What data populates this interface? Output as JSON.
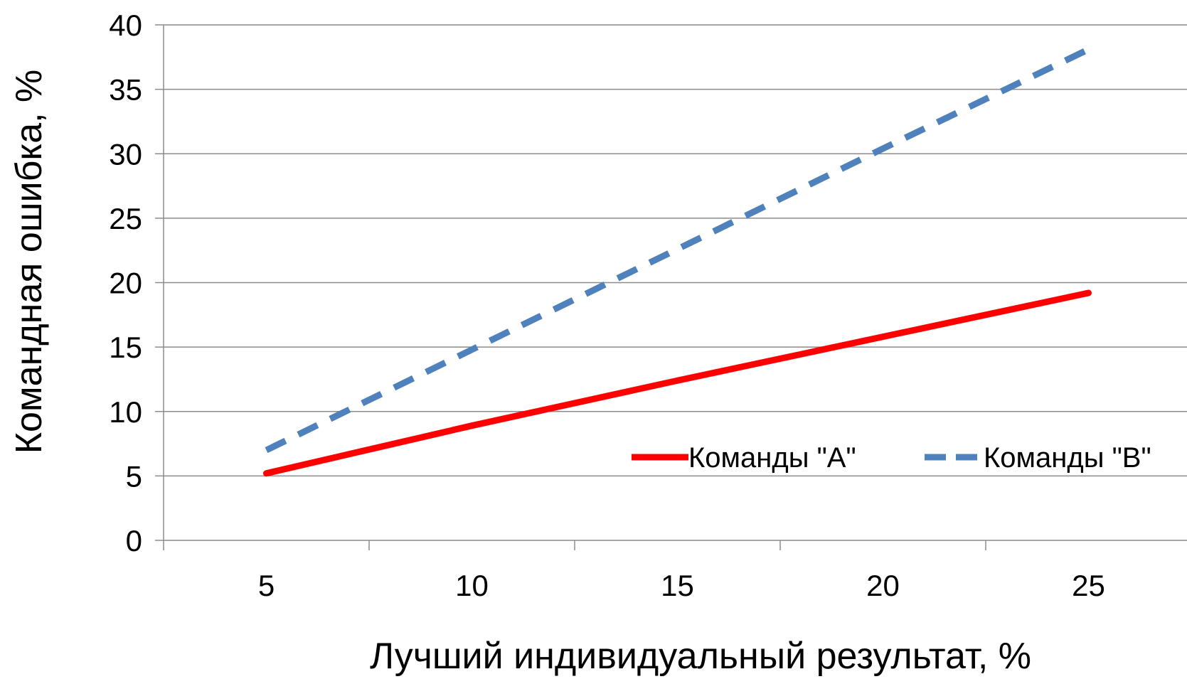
{
  "chart_data": {
    "type": "line",
    "title": "",
    "xlabel": "Лучший индивидуальный результат, %",
    "ylabel": "Командная ошибка, %",
    "x": [
      5,
      10,
      15,
      20,
      25
    ],
    "x_tick_labels": [
      "5",
      "10",
      "15",
      "20",
      "25"
    ],
    "y_tick_labels": [
      "0",
      "5",
      "10",
      "15",
      "20",
      "25",
      "30",
      "35",
      "40"
    ],
    "ylim": [
      0,
      40
    ],
    "grid": "horizontal",
    "legend_position": "inside-lower-right",
    "series": [
      {
        "name": "Команды \"A\"",
        "color": "#ff0000",
        "style": "solid",
        "values": [
          5.2,
          8.9,
          12.4,
          15.8,
          19.2
        ]
      },
      {
        "name": "Команды \"B\"",
        "color": "#4f81bd",
        "style": "dashed",
        "values": [
          7.0,
          14.8,
          22.6,
          30.4,
          38.1
        ]
      }
    ]
  }
}
